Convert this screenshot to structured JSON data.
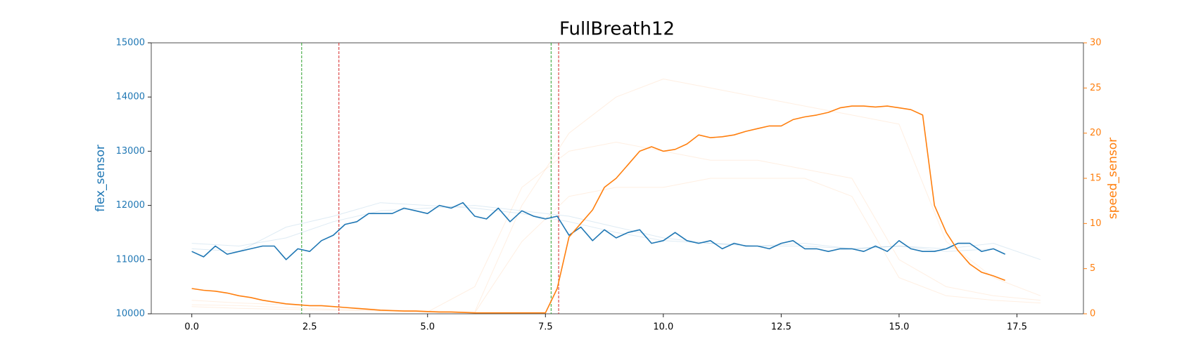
{
  "chart_data": {
    "type": "line",
    "title": "FullBreath12",
    "ylabel": "flex_sensor",
    "y2label": "speed_sensor",
    "xlim": [
      -0.86,
      18.91
    ],
    "ylim": [
      10000,
      15000
    ],
    "y2lim": [
      0,
      30
    ],
    "xticks": [
      {
        "value": 0,
        "label": "0.0"
      },
      2.5,
      {
        "value": 5,
        "label": "5.0"
      },
      7.5,
      {
        "value": 10,
        "label": "10.0"
      },
      12.5,
      {
        "value": 15,
        "label": "15.0"
      },
      17.5
    ],
    "yticks": [
      10000,
      11000,
      12000,
      13000,
      14000,
      15000
    ],
    "y2ticks": [
      0,
      5,
      10,
      15,
      20,
      25,
      30
    ],
    "ycolor": "#1f77b4",
    "y2color": "#ff7f0e",
    "vlines": [
      {
        "x": 2.33,
        "color": "#2ca02c"
      },
      {
        "x": 3.12,
        "color": "#d62728"
      },
      {
        "x": 7.62,
        "color": "#2ca02c"
      },
      {
        "x": 7.78,
        "color": "#d62728"
      }
    ],
    "x": [
      0,
      0.25,
      0.5,
      0.75,
      1,
      1.25,
      1.5,
      1.75,
      2,
      2.25,
      2.5,
      2.75,
      3,
      3.25,
      3.5,
      3.75,
      4,
      4.25,
      4.5,
      4.75,
      5,
      5.25,
      5.5,
      5.75,
      6,
      6.25,
      6.5,
      6.75,
      7,
      7.25,
      7.5,
      7.75,
      8,
      8.25,
      8.5,
      8.75,
      9,
      9.25,
      9.5,
      9.75,
      10,
      10.25,
      10.5,
      10.75,
      11,
      11.25,
      11.5,
      11.75,
      12,
      12.25,
      12.5,
      12.75,
      13,
      13.25,
      13.5,
      13.75,
      14,
      14.25,
      14.5,
      14.75,
      15,
      15.25,
      15.5,
      15.75,
      16,
      16.25,
      16.5,
      16.75,
      17,
      17.25
    ],
    "series": [
      {
        "color": "#1f77b4",
        "alpha": 0.15,
        "x": [
          0,
          1,
          2,
          3,
          4,
          5,
          6,
          7,
          8,
          9,
          10,
          11,
          12,
          13,
          14,
          15,
          16,
          17
        ],
        "values": [
          11300,
          11250,
          11400,
          11700,
          11900,
          11950,
          12000,
          11900,
          11800,
          11600,
          11400,
          11300,
          11250,
          11250,
          11200,
          11250,
          11150,
          11200
        ]
      },
      {
        "color": "#1f77b4",
        "alpha": 0.15,
        "x": [
          0,
          1,
          2,
          3,
          4,
          5,
          6,
          7,
          8,
          9,
          10,
          11,
          12,
          13,
          14,
          15,
          16,
          17,
          18
        ],
        "values": [
          11200,
          11150,
          11600,
          11800,
          12050,
          12000,
          11950,
          11850,
          11700,
          11500,
          11350,
          11300,
          11250,
          11300,
          11200,
          11250,
          11200,
          11300,
          11000
        ]
      },
      {
        "color": "#ff7f0e",
        "alpha": 0.12,
        "axis": "y2",
        "x": [
          0,
          1,
          2,
          3,
          4,
          5,
          6,
          7,
          8,
          9,
          10,
          11,
          12,
          13,
          14,
          15,
          16,
          17,
          18
        ],
        "values": [
          1.5,
          1.2,
          1.0,
          0.8,
          0.5,
          0.3,
          0.2,
          12,
          20,
          24,
          26,
          25,
          24,
          23,
          22,
          21,
          8,
          4,
          2
        ]
      },
      {
        "color": "#ff7f0e",
        "alpha": 0.12,
        "axis": "y2",
        "x": [
          0,
          1,
          2,
          3,
          4,
          5,
          6,
          7,
          8,
          9,
          10,
          11,
          12,
          13,
          14,
          15,
          16,
          17,
          18
        ],
        "values": [
          1.0,
          0.9,
          0.7,
          0.5,
          0.4,
          0.2,
          3,
          14,
          18,
          19,
          18,
          17,
          17,
          16,
          15,
          6,
          3,
          2,
          1.5
        ]
      },
      {
        "color": "#ff7f0e",
        "alpha": 0.12,
        "axis": "y2",
        "x": [
          0,
          1,
          2,
          3,
          4,
          5,
          6,
          7,
          8,
          9,
          10,
          11,
          12,
          13,
          14,
          15,
          16,
          17,
          18
        ],
        "values": [
          0.8,
          0.6,
          0.5,
          0.4,
          0.3,
          0.2,
          0.1,
          8,
          13,
          14,
          14,
          15,
          15,
          15,
          13,
          4,
          2,
          1.5,
          1.2
        ]
      },
      {
        "color": "#1f77b4",
        "alpha": 1,
        "values": [
          11150,
          11050,
          11250,
          11100,
          11150,
          11200,
          11250,
          11250,
          11000,
          11200,
          11150,
          11350,
          11450,
          11650,
          11700,
          11850,
          11850,
          11850,
          11950,
          11900,
          11850,
          12000,
          11950,
          12050,
          11800,
          11750,
          11950,
          11700,
          11900,
          11800,
          11750,
          11800,
          11450,
          11600,
          11350,
          11550,
          11400,
          11500,
          11550,
          11300,
          11350,
          11500,
          11350,
          11300,
          11350,
          11200,
          11300,
          11250,
          11250,
          11200,
          11300,
          11350,
          11200,
          11200,
          11150,
          11200,
          11200,
          11150,
          11250,
          11150,
          11350,
          11200,
          11150,
          11150,
          11200,
          11300,
          11300,
          11150,
          11200,
          11100
        ]
      },
      {
        "color": "#ff7f0e",
        "alpha": 1,
        "axis": "y2",
        "values": [
          2.8,
          2.6,
          2.5,
          2.3,
          2.0,
          1.8,
          1.5,
          1.3,
          1.1,
          1.0,
          0.9,
          0.9,
          0.8,
          0.7,
          0.6,
          0.5,
          0.4,
          0.35,
          0.3,
          0.3,
          0.25,
          0.2,
          0.2,
          0.15,
          0.1,
          0.1,
          0.1,
          0.1,
          0.1,
          0.1,
          0.1,
          2.8,
          8.5,
          10.0,
          11.5,
          14.0,
          15.0,
          16.5,
          18.0,
          18.5,
          18.0,
          18.2,
          18.8,
          19.8,
          19.5,
          19.6,
          19.8,
          20.2,
          20.5,
          20.8,
          20.8,
          21.5,
          21.8,
          22.0,
          22.3,
          22.8,
          23.0,
          23.0,
          22.9,
          23.0,
          22.8,
          22.6,
          22.0,
          12.0,
          9.0,
          7.0,
          5.5,
          4.6,
          4.2,
          3.7
        ]
      }
    ]
  }
}
